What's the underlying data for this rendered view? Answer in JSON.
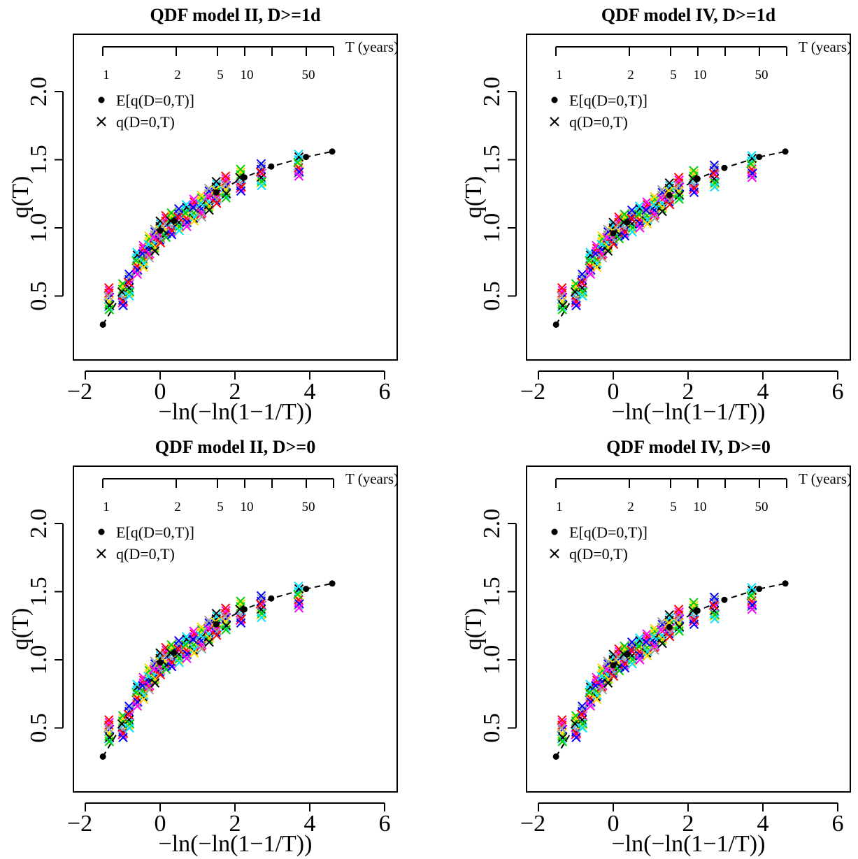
{
  "chart_data": [
    {
      "type": "scatter",
      "title": "QDF model II, D>=1d",
      "xlabel": "−ln(−ln(1−1/T))",
      "ylabel": "q(T)",
      "xlim": [
        -2,
        6
      ],
      "ylim": [
        0,
        2.3
      ],
      "xticks": [
        -2,
        0,
        2,
        4,
        6
      ],
      "yticks": [
        0.5,
        1.0,
        1.5,
        2.0
      ],
      "top_axis": {
        "title": "T (years)",
        "tick_labels": [
          "1",
          "2",
          "5",
          "10",
          "50"
        ]
      },
      "legend": {
        "position": "top-left",
        "entries": [
          "E[q(D=0,T)]",
          "q(D=0,T)"
        ]
      },
      "series": [
        {
          "name": "E[q(D=0,T)]",
          "marker": "dot",
          "line": "dashed",
          "x": [
            -1.53,
            0.0,
            0.37,
            1.5,
            2.25,
            2.97,
            3.9,
            4.6
          ],
          "y": [
            0.29,
            0.98,
            1.05,
            1.26,
            1.37,
            1.45,
            1.52,
            1.56
          ]
        },
        {
          "name": "q(D=0,T)",
          "marker": "cross",
          "style": "multicolor observations",
          "x": [
            -1.37,
            -1.0,
            -0.83,
            -0.62,
            -0.45,
            -0.3,
            -0.15,
            0.0,
            0.15,
            0.3,
            0.5,
            0.7,
            0.9,
            1.1,
            1.3,
            1.5,
            1.75,
            2.15,
            2.7,
            3.7
          ],
          "y": [
            0.47,
            0.5,
            0.57,
            0.73,
            0.78,
            0.85,
            0.9,
            0.96,
            1.0,
            1.02,
            1.05,
            1.08,
            1.12,
            1.15,
            1.2,
            1.25,
            1.29,
            1.34,
            1.38,
            1.45
          ]
        }
      ]
    },
    {
      "type": "scatter",
      "title": "QDF model IV,  D>=1d",
      "xlabel": "−ln(−ln(1−1/T))",
      "ylabel": "q(T)",
      "xlim": [
        -2,
        6
      ],
      "ylim": [
        0,
        2.3
      ],
      "xticks": [
        -2,
        0,
        2,
        4,
        6
      ],
      "yticks": [
        0.5,
        1.0,
        1.5,
        2.0
      ],
      "top_axis": {
        "title": "T (years)",
        "tick_labels": [
          "1",
          "2",
          "5",
          "10",
          "50"
        ]
      },
      "legend": {
        "position": "top-left",
        "entries": [
          "E[q(D=0,T)]",
          "q(D=0,T)"
        ]
      },
      "series": [
        {
          "name": "E[q(D=0,T)]",
          "marker": "dot",
          "line": "dashed",
          "x": [
            -1.53,
            0.0,
            0.37,
            1.5,
            2.25,
            2.97,
            3.9,
            4.6
          ],
          "y": [
            0.29,
            0.96,
            1.04,
            1.24,
            1.36,
            1.44,
            1.52,
            1.56
          ]
        },
        {
          "name": "q(D=0,T)",
          "marker": "cross",
          "style": "multicolor observations",
          "x": [
            -1.37,
            -1.0,
            -0.83,
            -0.62,
            -0.45,
            -0.3,
            -0.15,
            0.0,
            0.15,
            0.3,
            0.5,
            0.7,
            0.9,
            1.1,
            1.3,
            1.5,
            1.75,
            2.15,
            2.7,
            3.7
          ],
          "y": [
            0.47,
            0.5,
            0.57,
            0.73,
            0.78,
            0.85,
            0.9,
            0.95,
            0.99,
            1.01,
            1.04,
            1.07,
            1.1,
            1.14,
            1.19,
            1.24,
            1.28,
            1.33,
            1.37,
            1.44
          ]
        }
      ]
    },
    {
      "type": "scatter",
      "title": "QDF model II, D>=0",
      "xlabel": "−ln(−ln(1−1/T))",
      "ylabel": "q(T)",
      "xlim": [
        -2,
        6
      ],
      "ylim": [
        0,
        2.3
      ],
      "xticks": [
        -2,
        0,
        2,
        4,
        6
      ],
      "yticks": [
        0.5,
        1.0,
        1.5,
        2.0
      ],
      "top_axis": {
        "title": "T (years)",
        "tick_labels": [
          "1",
          "2",
          "5",
          "10",
          "50"
        ]
      },
      "legend": {
        "position": "top-left",
        "entries": [
          "E[q(D=0,T)]",
          "q(D=0,T)"
        ]
      },
      "series": [
        {
          "name": "E[q(D=0,T)]",
          "marker": "dot",
          "line": "dashed",
          "x": [
            -1.53,
            0.0,
            0.37,
            1.5,
            2.25,
            2.97,
            3.9,
            4.6
          ],
          "y": [
            0.29,
            0.98,
            1.05,
            1.26,
            1.37,
            1.45,
            1.52,
            1.56
          ]
        },
        {
          "name": "q(D=0,T)",
          "marker": "cross",
          "style": "multicolor observations",
          "x": [
            -1.37,
            -1.0,
            -0.83,
            -0.62,
            -0.45,
            -0.3,
            -0.15,
            0.0,
            0.15,
            0.3,
            0.5,
            0.7,
            0.9,
            1.1,
            1.3,
            1.5,
            1.75,
            2.15,
            2.7,
            3.7
          ],
          "y": [
            0.47,
            0.5,
            0.57,
            0.73,
            0.78,
            0.85,
            0.9,
            0.96,
            1.0,
            1.02,
            1.05,
            1.08,
            1.12,
            1.15,
            1.2,
            1.25,
            1.29,
            1.34,
            1.38,
            1.45
          ]
        }
      ]
    },
    {
      "type": "scatter",
      "title": "QDF model IV,  D>=0",
      "xlabel": "−ln(−ln(1−1/T))",
      "ylabel": "q(T)",
      "xlim": [
        -2,
        6
      ],
      "ylim": [
        0,
        2.3
      ],
      "xticks": [
        -2,
        0,
        2,
        4,
        6
      ],
      "yticks": [
        0.5,
        1.0,
        1.5,
        2.0
      ],
      "top_axis": {
        "title": "T (years)",
        "tick_labels": [
          "1",
          "2",
          "5",
          "10",
          "50"
        ]
      },
      "legend": {
        "position": "top-left",
        "entries": [
          "E[q(D=0,T)]",
          "q(D=0,T)"
        ]
      },
      "series": [
        {
          "name": "E[q(D=0,T)]",
          "marker": "dot",
          "line": "dashed",
          "x": [
            -1.53,
            0.0,
            0.37,
            1.5,
            2.25,
            2.97,
            3.9,
            4.6
          ],
          "y": [
            0.29,
            0.96,
            1.04,
            1.24,
            1.36,
            1.44,
            1.52,
            1.56
          ]
        },
        {
          "name": "q(D=0,T)",
          "marker": "cross",
          "style": "multicolor observations",
          "x": [
            -1.37,
            -1.0,
            -0.83,
            -0.62,
            -0.45,
            -0.3,
            -0.15,
            0.0,
            0.15,
            0.3,
            0.5,
            0.7,
            0.9,
            1.1,
            1.3,
            1.5,
            1.75,
            2.15,
            2.7,
            3.7
          ],
          "y": [
            0.47,
            0.5,
            0.57,
            0.73,
            0.78,
            0.85,
            0.9,
            0.95,
            0.99,
            1.01,
            1.04,
            1.07,
            1.1,
            1.14,
            1.19,
            1.24,
            1.28,
            1.33,
            1.37,
            1.44
          ]
        }
      ]
    }
  ],
  "colors": {
    "expected": "#000000",
    "observations": [
      "#ff0000",
      "#00cc00",
      "#0000ff",
      "#00e5ff",
      "#ff00ff",
      "#ffd700",
      "#9e9e9e",
      "#000000"
    ]
  }
}
